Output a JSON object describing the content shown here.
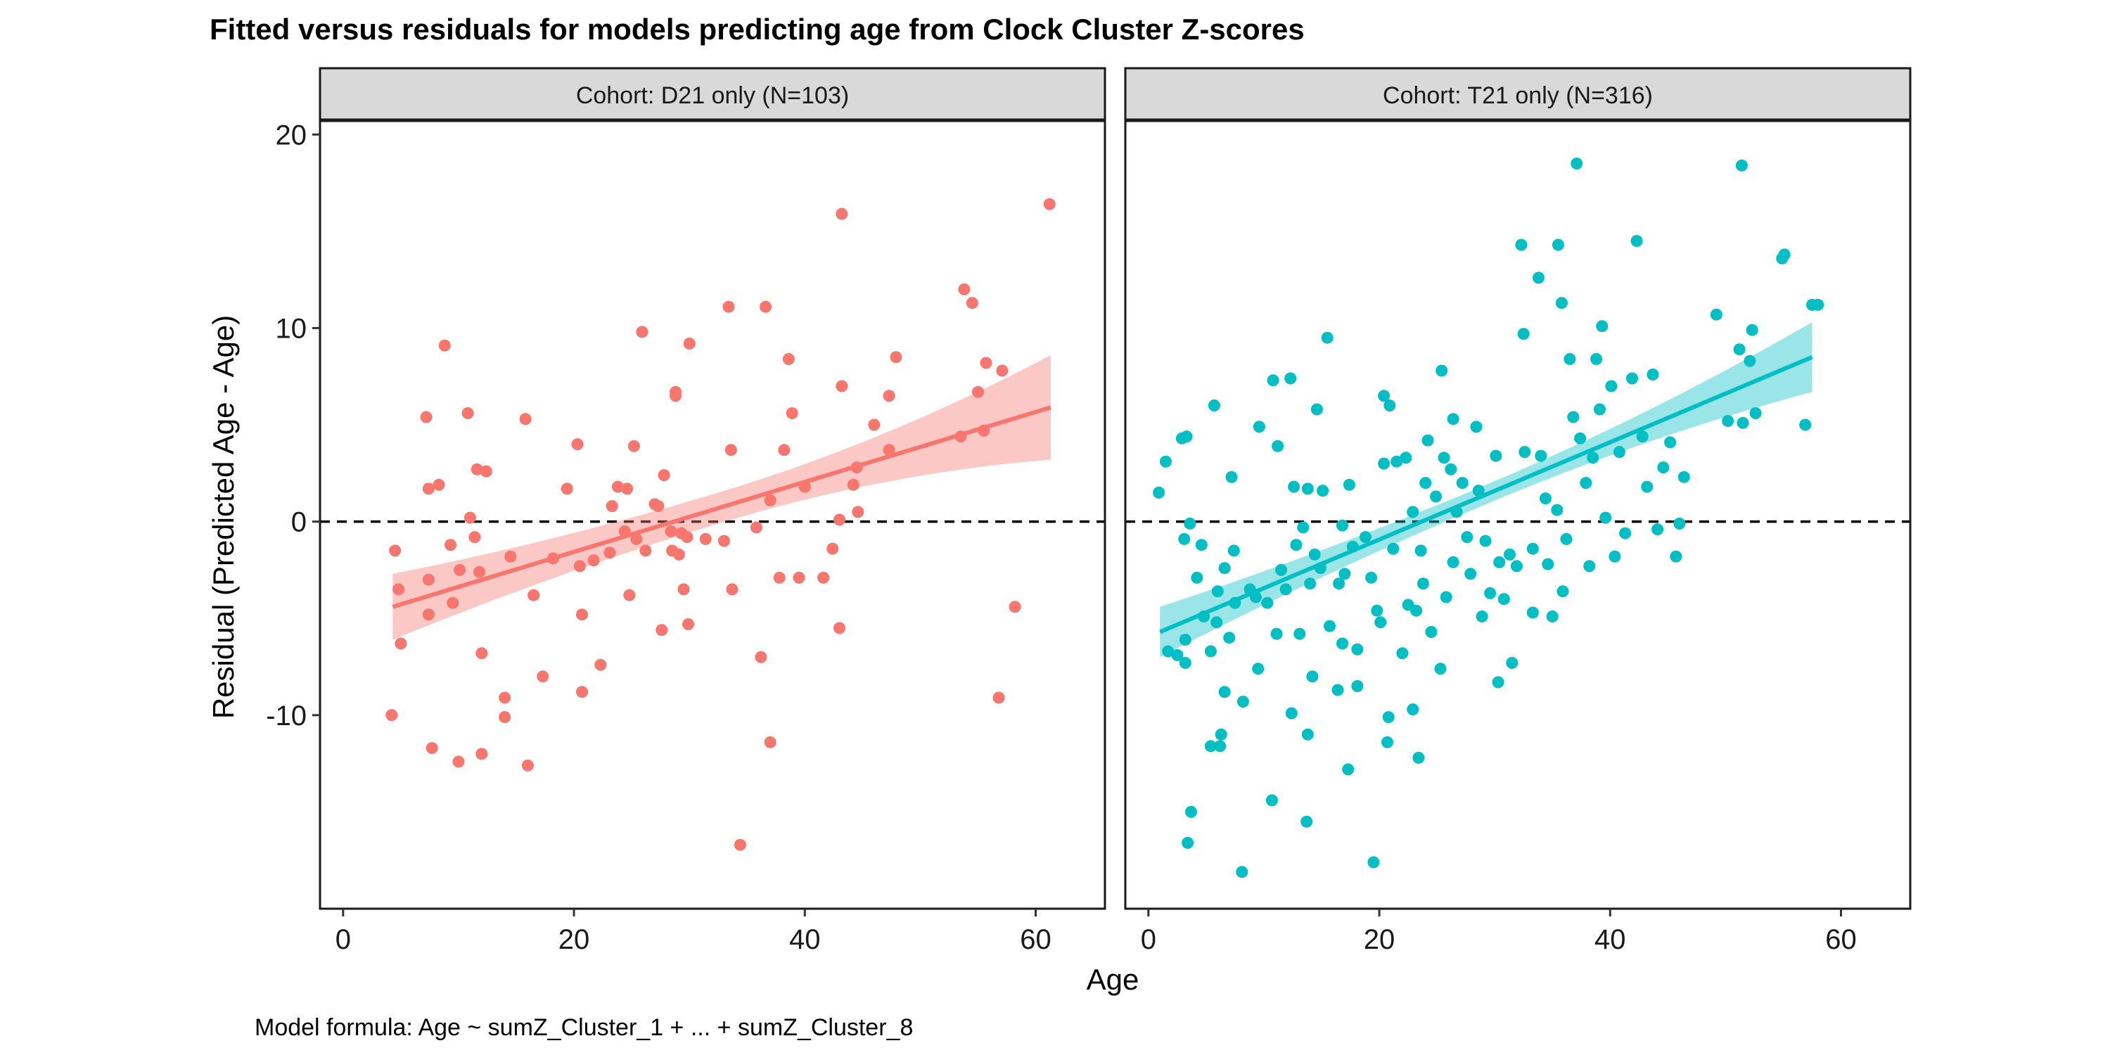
{
  "chart_data": {
    "type": "scatter",
    "title": "Fitted versus residuals for models predicting age from Clock Cluster Z-scores",
    "xlabel": "Age",
    "ylabel": "Residual (Predicted Age - Age)",
    "caption": "Model formula: Age ~ sumZ_Cluster_1 + ... + sumZ_Cluster_8",
    "xlim": [
      -2,
      66
    ],
    "ylim": [
      -20,
      20.7
    ],
    "x_ticks": [
      0,
      20,
      40,
      60
    ],
    "y_ticks": [
      -10,
      0,
      10,
      20
    ],
    "reference_line": {
      "y": 0,
      "style": "dashed"
    },
    "grid": false,
    "legend": "none",
    "panels": [
      {
        "strip_label": "Cohort: D21 only (N=103)",
        "color": "#F8766D",
        "fit": {
          "x_range": [
            4.3,
            61.3
          ],
          "y_start": -4.4,
          "y_end": 5.9,
          "se_start": 1.7,
          "se_mid": 0.8,
          "se_end": 2.7
        },
        "points": [
          [
            4.2,
            -10.0
          ],
          [
            4.5,
            -1.5
          ],
          [
            4.8,
            -3.5
          ],
          [
            5.0,
            -6.3
          ],
          [
            7.2,
            5.4
          ],
          [
            7.4,
            1.7
          ],
          [
            7.4,
            -3.0
          ],
          [
            7.4,
            -4.8
          ],
          [
            7.7,
            -11.7
          ],
          [
            8.3,
            1.9
          ],
          [
            8.8,
            9.1
          ],
          [
            9.3,
            -1.2
          ],
          [
            9.5,
            -4.2
          ],
          [
            10.0,
            -12.4
          ],
          [
            10.1,
            -2.5
          ],
          [
            10.8,
            5.6
          ],
          [
            11.0,
            0.2
          ],
          [
            11.4,
            -0.8
          ],
          [
            11.6,
            2.7
          ],
          [
            11.8,
            -2.6
          ],
          [
            12.0,
            -12.0
          ],
          [
            12.0,
            -6.8
          ],
          [
            12.4,
            2.6
          ],
          [
            14.0,
            -9.1
          ],
          [
            14.0,
            -10.1
          ],
          [
            14.5,
            -1.8
          ],
          [
            15.8,
            5.3
          ],
          [
            16.0,
            -12.6
          ],
          [
            16.5,
            -3.8
          ],
          [
            17.3,
            -8.0
          ],
          [
            18.2,
            -1.9
          ],
          [
            19.4,
            1.7
          ],
          [
            20.3,
            4.0
          ],
          [
            20.5,
            -2.3
          ],
          [
            20.7,
            -4.8
          ],
          [
            20.7,
            -8.8
          ],
          [
            21.7,
            -2.0
          ],
          [
            22.3,
            -7.4
          ],
          [
            23.1,
            -1.6
          ],
          [
            23.3,
            0.8
          ],
          [
            23.8,
            1.8
          ],
          [
            24.4,
            -0.5
          ],
          [
            24.6,
            1.7
          ],
          [
            24.8,
            -3.8
          ],
          [
            25.2,
            3.9
          ],
          [
            25.4,
            -0.9
          ],
          [
            25.9,
            9.8
          ],
          [
            26.2,
            -1.5
          ],
          [
            27.0,
            0.9
          ],
          [
            27.3,
            0.8
          ],
          [
            27.6,
            -5.6
          ],
          [
            27.8,
            2.4
          ],
          [
            28.4,
            -0.5
          ],
          [
            28.5,
            -1.5
          ],
          [
            28.8,
            6.5
          ],
          [
            28.8,
            6.7
          ],
          [
            29.1,
            -1.7
          ],
          [
            29.3,
            -0.6
          ],
          [
            29.5,
            -3.5
          ],
          [
            29.8,
            -0.8
          ],
          [
            29.9,
            -5.3
          ],
          [
            30.0,
            9.2
          ],
          [
            31.4,
            -0.9
          ],
          [
            33.0,
            -1.0
          ],
          [
            33.4,
            11.1
          ],
          [
            33.6,
            3.7
          ],
          [
            33.7,
            -3.5
          ],
          [
            34.4,
            -16.7
          ],
          [
            35.8,
            -0.3
          ],
          [
            36.2,
            -7.0
          ],
          [
            36.6,
            11.1
          ],
          [
            37.0,
            1.1
          ],
          [
            37.0,
            -11.4
          ],
          [
            37.8,
            -2.9
          ],
          [
            38.2,
            3.7
          ],
          [
            38.6,
            8.4
          ],
          [
            38.9,
            5.6
          ],
          [
            39.5,
            -2.9
          ],
          [
            40.0,
            1.8
          ],
          [
            41.6,
            -2.9
          ],
          [
            42.4,
            -1.4
          ],
          [
            43.0,
            -5.5
          ],
          [
            43.0,
            0.1
          ],
          [
            43.2,
            7.0
          ],
          [
            43.2,
            15.9
          ],
          [
            44.2,
            1.9
          ],
          [
            44.5,
            2.8
          ],
          [
            44.6,
            0.5
          ],
          [
            46.0,
            5.0
          ],
          [
            47.3,
            3.7
          ],
          [
            47.3,
            6.5
          ],
          [
            47.9,
            8.5
          ],
          [
            53.5,
            4.4
          ],
          [
            53.8,
            12.0
          ],
          [
            54.5,
            11.3
          ],
          [
            55.0,
            6.7
          ],
          [
            55.5,
            4.7
          ],
          [
            55.7,
            8.2
          ],
          [
            57.1,
            7.8
          ],
          [
            56.8,
            -9.1
          ],
          [
            58.2,
            -4.4
          ],
          [
            61.2,
            16.4
          ]
        ]
      },
      {
        "strip_label": "Cohort: T21 only (N=316)",
        "color": "#00BFC4",
        "fit": {
          "x_range": [
            1.0,
            57.5
          ],
          "y_start": -5.7,
          "y_end": 8.5,
          "se_start": 1.3,
          "se_mid": 0.5,
          "se_end": 1.8
        },
        "points": [
          [
            0.9,
            1.5
          ],
          [
            1.5,
            3.1
          ],
          [
            1.7,
            -6.7
          ],
          [
            2.5,
            -6.9
          ],
          [
            2.9,
            4.3
          ],
          [
            3.1,
            -0.9
          ],
          [
            3.2,
            -6.1
          ],
          [
            3.2,
            -7.3
          ],
          [
            3.3,
            4.4
          ],
          [
            3.4,
            -16.6
          ],
          [
            3.6,
            -0.1
          ],
          [
            3.7,
            -15.0
          ],
          [
            4.2,
            -2.9
          ],
          [
            4.6,
            -1.2
          ],
          [
            4.8,
            -4.9
          ],
          [
            5.4,
            -6.7
          ],
          [
            5.4,
            -11.6
          ],
          [
            5.7,
            6.0
          ],
          [
            5.9,
            -5.2
          ],
          [
            6.0,
            -3.6
          ],
          [
            6.2,
            -11.6
          ],
          [
            6.3,
            -11.0
          ],
          [
            6.6,
            -8.8
          ],
          [
            6.6,
            -2.4
          ],
          [
            7.0,
            -6.0
          ],
          [
            7.2,
            2.3
          ],
          [
            7.4,
            -1.5
          ],
          [
            7.5,
            -4.2
          ],
          [
            8.1,
            -18.1
          ],
          [
            8.2,
            -9.3
          ],
          [
            8.8,
            -3.5
          ],
          [
            9.3,
            -3.9
          ],
          [
            9.5,
            -7.6
          ],
          [
            10.3,
            -4.2
          ],
          [
            10.7,
            -14.4
          ],
          [
            10.8,
            7.3
          ],
          [
            11.1,
            -5.8
          ],
          [
            11.2,
            3.9
          ],
          [
            11.5,
            -2.5
          ],
          [
            11.9,
            -3.5
          ],
          [
            12.3,
            7.4
          ],
          [
            12.4,
            -9.9
          ],
          [
            12.6,
            1.8
          ],
          [
            12.8,
            -1.2
          ],
          [
            13.1,
            -5.8
          ],
          [
            13.4,
            -0.3
          ],
          [
            13.7,
            -15.5
          ],
          [
            13.8,
            1.7
          ],
          [
            13.8,
            -11.0
          ],
          [
            14.0,
            -3.2
          ],
          [
            14.2,
            -8.0
          ],
          [
            14.4,
            -1.7
          ],
          [
            14.6,
            5.8
          ],
          [
            14.9,
            -2.4
          ],
          [
            15.5,
            9.5
          ],
          [
            15.7,
            -5.4
          ],
          [
            16.4,
            -8.7
          ],
          [
            16.5,
            -3.2
          ],
          [
            16.8,
            -6.3
          ],
          [
            17.0,
            -2.7
          ],
          [
            17.3,
            -12.8
          ],
          [
            17.4,
            1.9
          ],
          [
            17.7,
            -1.3
          ],
          [
            18.1,
            -6.6
          ],
          [
            18.1,
            -8.5
          ],
          [
            18.8,
            -0.8
          ],
          [
            19.3,
            -2.9
          ],
          [
            19.5,
            -17.6
          ],
          [
            19.8,
            -4.6
          ],
          [
            20.1,
            -5.2
          ],
          [
            20.4,
            3.0
          ],
          [
            20.4,
            6.5
          ],
          [
            20.7,
            -11.4
          ],
          [
            20.8,
            -10.1
          ],
          [
            20.9,
            6.0
          ],
          [
            21.2,
            -1.4
          ],
          [
            21.5,
            3.1
          ],
          [
            22.0,
            -6.8
          ],
          [
            22.3,
            3.3
          ],
          [
            22.5,
            -4.3
          ],
          [
            22.9,
            -9.7
          ],
          [
            22.9,
            0.5
          ],
          [
            23.2,
            -4.6
          ],
          [
            23.4,
            -12.2
          ],
          [
            23.6,
            -1.5
          ],
          [
            23.8,
            -3.2
          ],
          [
            24.2,
            4.2
          ],
          [
            24.5,
            -5.7
          ],
          [
            24.9,
            1.3
          ],
          [
            25.3,
            -7.6
          ],
          [
            25.4,
            7.8
          ],
          [
            25.6,
            3.3
          ],
          [
            25.8,
            -3.9
          ],
          [
            26.2,
            2.7
          ],
          [
            26.4,
            5.3
          ],
          [
            26.4,
            -2.1
          ],
          [
            26.7,
            0.5
          ],
          [
            27.2,
            2.0
          ],
          [
            27.6,
            -0.8
          ],
          [
            27.9,
            -2.7
          ],
          [
            28.4,
            4.9
          ],
          [
            28.9,
            -4.9
          ],
          [
            29.2,
            -1.0
          ],
          [
            29.6,
            -3.7
          ],
          [
            30.1,
            3.4
          ],
          [
            30.3,
            -8.3
          ],
          [
            30.4,
            -2.1
          ],
          [
            30.8,
            -4.0
          ],
          [
            31.3,
            -1.7
          ],
          [
            31.5,
            -7.3
          ],
          [
            31.9,
            -2.3
          ],
          [
            32.3,
            14.3
          ],
          [
            32.5,
            9.7
          ],
          [
            32.6,
            3.6
          ],
          [
            33.3,
            -1.4
          ],
          [
            33.3,
            -4.7
          ],
          [
            33.8,
            12.6
          ],
          [
            34.0,
            3.4
          ],
          [
            34.4,
            1.2
          ],
          [
            34.6,
            -2.2
          ],
          [
            35.0,
            -4.9
          ],
          [
            35.4,
            0.6
          ],
          [
            35.5,
            14.3
          ],
          [
            35.8,
            11.3
          ],
          [
            35.9,
            -3.6
          ],
          [
            36.2,
            -0.9
          ],
          [
            36.5,
            8.4
          ],
          [
            36.8,
            5.4
          ],
          [
            37.1,
            18.5
          ],
          [
            37.4,
            4.3
          ],
          [
            37.9,
            2.0
          ],
          [
            38.2,
            -2.3
          ],
          [
            38.5,
            3.3
          ],
          [
            38.8,
            8.4
          ],
          [
            39.1,
            5.8
          ],
          [
            39.3,
            10.1
          ],
          [
            39.6,
            0.2
          ],
          [
            40.1,
            7.0
          ],
          [
            40.4,
            -1.8
          ],
          [
            40.8,
            3.6
          ],
          [
            41.3,
            -0.6
          ],
          [
            41.9,
            7.4
          ],
          [
            42.3,
            14.5
          ],
          [
            42.8,
            4.4
          ],
          [
            43.2,
            1.8
          ],
          [
            43.7,
            7.6
          ],
          [
            44.1,
            -0.4
          ],
          [
            44.6,
            2.8
          ],
          [
            45.2,
            4.1
          ],
          [
            45.7,
            -1.8
          ],
          [
            46.0,
            -0.1
          ],
          [
            46.4,
            2.3
          ],
          [
            49.2,
            10.7
          ],
          [
            50.2,
            5.2
          ],
          [
            51.2,
            8.9
          ],
          [
            51.4,
            18.4
          ],
          [
            51.5,
            5.1
          ],
          [
            52.1,
            8.3
          ],
          [
            52.3,
            9.9
          ],
          [
            52.6,
            5.6
          ],
          [
            54.9,
            13.6
          ],
          [
            55.1,
            13.8
          ],
          [
            56.9,
            5.0
          ],
          [
            57.5,
            11.2
          ],
          [
            58.0,
            11.2
          ],
          [
            9.6,
            4.9
          ],
          [
            15.1,
            1.6
          ],
          [
            16.8,
            -0.2
          ],
          [
            24.0,
            2.0
          ],
          [
            28.6,
            1.6
          ]
        ]
      }
    ]
  }
}
